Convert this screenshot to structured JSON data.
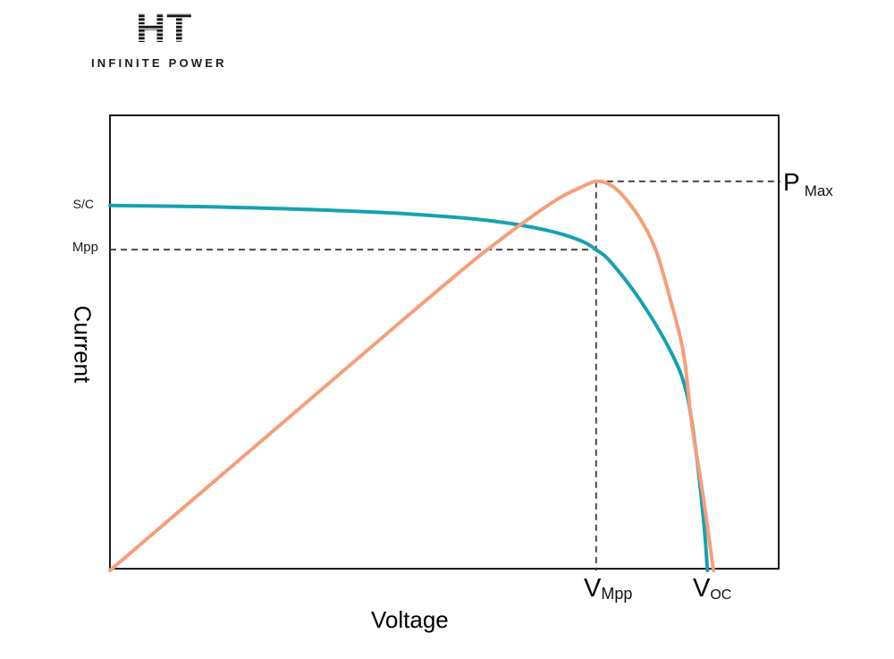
{
  "logo": {
    "monogram": "HT",
    "wordmark": "INFINITE POWER"
  },
  "labels": {
    "sc": "S/C",
    "mpp": "Mpp",
    "pmax": {
      "main": "P",
      "sub": "Max"
    },
    "vmpp": {
      "main": "V",
      "sub": "Mpp"
    },
    "voc": {
      "main": "V",
      "sub": "OC"
    }
  },
  "chart_data": {
    "type": "line",
    "title": "",
    "xlabel": "Voltage",
    "ylabel": "Current",
    "grid": false,
    "legend": "none",
    "axes_note": "Qualitative axes with no numeric ticks; all coordinates are normalized fractions of the plot box (x: 0-1 left-to-right, y: 0-1 bottom-to-top)",
    "key_points": {
      "v_mpp": 0.725,
      "v_oc": 0.891,
      "i_sc": 0.802,
      "i_mpp": 0.705,
      "p_max": 0.855
    },
    "guide_line_color": "#3a3a3a",
    "axis_color": "#1b1b1b",
    "series": [
      {
        "name": "iv-curve",
        "description": "Current vs Voltage (I-V) curve of solar cell",
        "color": "#16a1b0",
        "stroke_width": 4,
        "points": [
          [
            0,
            0.802
          ],
          [
            0.15,
            0.799
          ],
          [
            0.3,
            0.793
          ],
          [
            0.45,
            0.783
          ],
          [
            0.57,
            0.768
          ],
          [
            0.65,
            0.748
          ],
          [
            0.7,
            0.726
          ],
          [
            0.725,
            0.705
          ],
          [
            0.748,
            0.676
          ],
          [
            0.793,
            0.589
          ],
          [
            0.837,
            0.479
          ],
          [
            0.86,
            0.39
          ],
          [
            0.875,
            0.25
          ],
          [
            0.886,
            0.1
          ],
          [
            0.891,
            0
          ]
        ]
      },
      {
        "name": "power-curve",
        "description": "Power vs Voltage curve peaking at P Max",
        "color": "#f79e79",
        "stroke_width": 4,
        "points": [
          [
            0,
            0
          ],
          [
            0.15,
            0.189
          ],
          [
            0.3,
            0.378
          ],
          [
            0.45,
            0.567
          ],
          [
            0.55,
            0.69
          ],
          [
            0.62,
            0.768
          ],
          [
            0.67,
            0.818
          ],
          [
            0.7,
            0.84
          ],
          [
            0.725,
            0.855
          ],
          [
            0.748,
            0.846
          ],
          [
            0.77,
            0.815
          ],
          [
            0.795,
            0.762
          ],
          [
            0.815,
            0.7
          ],
          [
            0.833,
            0.61
          ],
          [
            0.855,
            0.48
          ],
          [
            0.868,
            0.32
          ],
          [
            0.885,
            0.16
          ],
          [
            0.9,
            0
          ]
        ]
      }
    ]
  }
}
